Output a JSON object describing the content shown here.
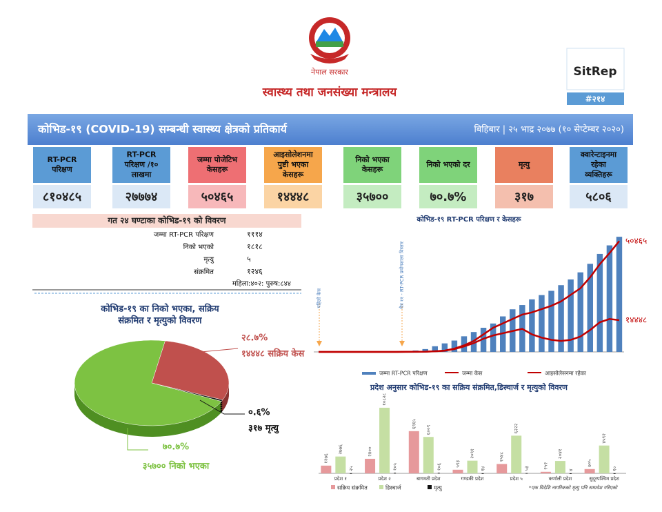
{
  "header": {
    "government": "नेपाल सरकार",
    "ministry": "स्वास्थ्य तथा जनसंख्या मन्त्रालय",
    "badge": "SitRep",
    "report_number": "#२१४"
  },
  "banner": {
    "title": "कोभिड-१९ (COVID-19) सम्बन्धी स्वास्थ्य क्षेत्रको प्रतिकार्य",
    "date": "बिहिबार | २५ भाद्र २०७७ (१० सेप्टेम्बर २०२०)"
  },
  "cards": [
    {
      "label": "RT-PCR परिक्षण",
      "value": "८१०४८५",
      "color": "#5b9bd5",
      "light": "#dbe8f6"
    },
    {
      "label": "RT-PCR परिक्षण /१० लाखमा",
      "value": "२७७७४",
      "color": "#5b9bd5",
      "light": "#dbe8f6"
    },
    {
      "label": "जम्मा पोजेटिभ केसहरू",
      "value": "५०४६५",
      "color": "#ee6f73",
      "light": "#f7b8ba"
    },
    {
      "label": "आइसोलेशनमा पुष्टी भएका केसहरू",
      "value": "१४४४८",
      "color": "#f6a64b",
      "light": "#fbd4a4"
    },
    {
      "label": "निको भएका केसहरू",
      "value": "३५७००",
      "color": "#7fd37a",
      "light": "#c4ecc1"
    },
    {
      "label": "निको भएको दर",
      "value": "७०.७%",
      "color": "#7fd37a",
      "light": "#c4ecc1"
    },
    {
      "label": "मृत्यु",
      "value": "३१७",
      "color": "#e9805f",
      "light": "#f4bfae"
    },
    {
      "label": "क्वारेन्टाइनमा रहेका व्यक्तिहरू",
      "value": "५८०६",
      "color": "#5b9bd5",
      "light": "#dbe8f6"
    }
  ],
  "summary": {
    "title": "गत २४ घण्टाका कोभिड-१९ को विवरण",
    "rows": [
      [
        "जम्मा RT-PCR परिक्षण",
        "१११४"
      ],
      [
        "निको भएको",
        "१८१८"
      ],
      [
        "मृत्यु",
        "५"
      ],
      [
        "संक्रमित",
        "१२४६"
      ]
    ],
    "note": "महिला:४०२: पुरुष:८४४"
  },
  "chart_data": [
    {
      "type": "pie",
      "title": "कोभिड-१९ का निको भएका, सक्रिय संक्रमित र मृत्युको विवरण",
      "categories": [
        "१४४४८ सक्रिय केस",
        "३१७ मृत्यु",
        "३५७०० निको भएका"
      ],
      "values": [
        28.7,
        0.6,
        70.7
      ],
      "value_labels": [
        "२८.७%",
        "०.६%",
        "७०.७%"
      ],
      "colors": [
        "#c0504d",
        "#1a1a1a",
        "#7dc242"
      ]
    },
    {
      "type": "bar-line",
      "title": "कोभिड-१९ RT-PCR परिक्षण र केसहरू",
      "annotations": [
        "पहिलो केस",
        "चैत्र ११ - RT-PCR प्रयोगशाला विस्तार"
      ],
      "categories": [
        null,
        null,
        null,
        null,
        null,
        null,
        null,
        null,
        null,
        null,
        null,
        null,
        null,
        null,
        null,
        null,
        null,
        null,
        null,
        null,
        null,
        null,
        null,
        null,
        null,
        null,
        null,
        null,
        null,
        null,
        null,
        null
      ],
      "ylim": [
        0,
        850000
      ],
      "y2lim": [
        0,
        55000
      ],
      "series": [
        {
          "name": "जम्मा RT-PCR परिक्षण",
          "type": "bar",
          "color": "#4f81bd",
          "values": [
            0,
            0,
            0,
            0,
            0,
            0,
            0,
            1000,
            2000,
            5000,
            10000,
            20000,
            40000,
            60000,
            80000,
            110000,
            140000,
            170000,
            200000,
            250000,
            300000,
            330000,
            370000,
            400000,
            430000,
            470000,
            510000,
            560000,
            620000,
            690000,
            750000,
            810485
          ]
        },
        {
          "name": "जम्मा केस",
          "type": "line",
          "axis": "y2",
          "color": "#c00000",
          "end_label": "५०४६५",
          "values": [
            1,
            1,
            1,
            1,
            1,
            1,
            1,
            5,
            9,
            30,
            60,
            100,
            300,
            600,
            1500,
            3000,
            5000,
            8000,
            11000,
            13000,
            15000,
            17000,
            18000,
            19500,
            21000,
            23000,
            26000,
            29000,
            34000,
            40000,
            45000,
            50465
          ]
        },
        {
          "name": "आइसोलेसनमा रहेका",
          "type": "line",
          "axis": "y2",
          "color": "#c00000",
          "end_label": "१४४४८",
          "values": [
            1,
            1,
            1,
            1,
            1,
            1,
            1,
            5,
            9,
            28,
            55,
            90,
            270,
            540,
            1300,
            2500,
            4000,
            6000,
            7500,
            8500,
            9500,
            10500,
            8000,
            6500,
            5500,
            5000,
            5500,
            7000,
            10000,
            13500,
            15000,
            14448
          ]
        }
      ]
    },
    {
      "type": "grouped-bar",
      "title": "प्रदेश अनुसार कोभिड-१९ का सक्रिय संक्रमित,डिस्चार्ज र मृत्युको विवरण",
      "note": "*एक विदेशि नागरिकको मृत्यु पनि समावेश गरिएको",
      "categories": [
        "प्रदेश १",
        "प्रदेश २",
        "बागमती प्रदेश",
        "गण्डकी प्रदेश",
        "प्रदेश ५",
        "कर्णाली प्रदेश",
        "सुदूरपश्चिम प्रदेश"
      ],
      "ylim": [
        0,
        11500
      ],
      "series": [
        {
          "name": "सक्रिय संक्रमित",
          "color": "#e6999b",
          "values": [
            1276,
            2400,
            6965,
            593,
            1548,
            252,
            705
          ],
          "value_labels": [
            "१२७६",
            "२४००",
            "६९६५",
            "५९३",
            "१५४८",
            "२५२",
            "७०५"
          ]
        },
        {
          "name": "डिस्चार्ज",
          "color": "#c5dfa3",
          "values": [
            2776,
            10828,
            6009,
            2091,
            6222,
            2041,
            4592
          ],
          "value_labels": [
            "२७७६",
            "१०८२८",
            "६००९",
            "२०९१",
            "६२२२",
            "२०४१",
            "४५९२"
          ]
        },
        {
          "name": "मृत्यु",
          "color": "#111111",
          "values": [
            25,
            105,
            106,
            14,
            53,
            4,
            10
          ],
          "value_labels": [
            "२५",
            "१०५",
            "१०६",
            "१४",
            "५३",
            "४",
            "१०"
          ]
        }
      ]
    }
  ]
}
